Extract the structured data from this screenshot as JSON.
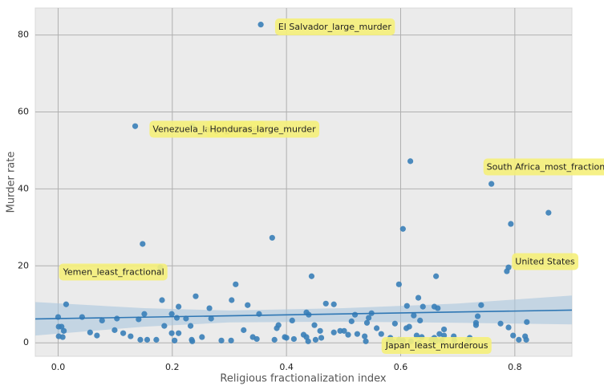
{
  "chart_data": {
    "type": "scatter",
    "xlabel": "Religious fractionalization index",
    "ylabel": "Murder rate",
    "xlim": [
      -0.04,
      0.9
    ],
    "ylim": [
      -3.5,
      87
    ],
    "xticks": [
      {
        "value": 0,
        "label": "0.0"
      },
      0.2,
      0.4,
      0.6,
      0.8
    ],
    "yticks": [
      0,
      20,
      40,
      60,
      80
    ],
    "grid": true,
    "color": "#3a7fb8",
    "x": [
      0.355,
      0.135,
      0.235,
      0.617,
      0.759,
      0.793,
      0.859,
      0.604,
      0.375,
      0.148,
      0.179,
      0.786,
      0.789,
      0.444,
      0.662,
      0.311,
      0.597,
      0.241,
      0.631,
      0.014,
      0.182,
      0.304,
      0.469,
      0.483,
      0.332,
      0.211,
      0.611,
      0.639,
      0.659,
      0.665,
      0.741,
      0.265,
      0.435,
      0.439,
      0.151,
      0.199,
      0.352,
      0.549,
      0.52,
      0.224,
      0.103,
      0.268,
      0.623,
      0.735,
      0.042,
      0.0,
      0.544,
      0.208,
      0.141,
      0.077,
      0.41,
      0.775,
      0.821,
      0.514,
      0.541,
      0.634,
      0.732,
      0.59,
      0.386,
      0.449,
      0.232,
      0.615,
      0.186,
      0.001,
      0.006,
      0.732,
      0.789,
      0.01,
      0.099,
      0.325,
      0.383,
      0.558,
      0.459,
      0.494,
      0.501,
      0.61,
      0.676,
      0.056,
      0.114,
      0.199,
      0.211,
      0.43,
      0.483,
      0.508,
      0.524,
      0.566,
      0.628,
      0.668,
      0.676,
      0.693,
      0.797,
      0.818,
      0.068,
      0.127,
      0.001,
      0.008,
      0.252,
      0.341,
      0.348,
      0.397,
      0.4,
      0.435,
      0.461,
      0.537,
      0.582,
      0.637,
      0.659,
      0.721,
      0.144,
      0.156,
      0.172,
      0.234,
      0.286,
      0.379,
      0.413,
      0.451,
      0.204,
      0.539,
      0.597,
      0.604,
      0.654,
      0.672,
      0.694,
      0.807,
      0.82,
      0.235,
      0.303,
      0.438,
      0.579,
      0.618,
      0.718,
      0.632,
      0.662,
      0.587
    ],
    "y": [
      82.7,
      56.3,
      56.3,
      47.2,
      41.3,
      30.9,
      33.8,
      29.6,
      27.3,
      25.7,
      19.6,
      18.6,
      19.6,
      17.3,
      17.3,
      15.2,
      15.2,
      12.1,
      11.7,
      10.0,
      11.1,
      11.1,
      10.2,
      10.0,
      9.8,
      9.4,
      9.6,
      9.4,
      9.4,
      9.0,
      9.8,
      9.0,
      7.9,
      7.3,
      7.5,
      7.5,
      7.5,
      7.7,
      7.3,
      6.3,
      6.3,
      6.3,
      7.1,
      6.9,
      6.7,
      6.7,
      6.5,
      6.5,
      6.1,
      5.8,
      5.8,
      5.0,
      5.4,
      5.6,
      5.2,
      5.8,
      5.2,
      5.0,
      4.6,
      4.6,
      4.4,
      4.2,
      4.4,
      4.2,
      4.2,
      4.6,
      4.0,
      3.1,
      3.3,
      3.3,
      3.8,
      3.8,
      3.1,
      3.1,
      3.1,
      3.8,
      3.5,
      2.7,
      2.5,
      2.5,
      2.5,
      2.1,
      2.7,
      2.1,
      2.3,
      2.3,
      1.9,
      2.3,
      1.9,
      1.7,
      1.9,
      1.7,
      1.9,
      1.7,
      1.7,
      1.5,
      1.5,
      1.5,
      1.0,
      1.5,
      1.3,
      1.5,
      1.3,
      1.7,
      1.3,
      1.5,
      1.3,
      1.3,
      0.8,
      0.8,
      0.8,
      0.8,
      0.6,
      0.8,
      1.0,
      0.8,
      0.6,
      0.4,
      0.8,
      0.6,
      0.8,
      0.6,
      0.6,
      0.8,
      0.8,
      0.4,
      0.6,
      0.4,
      0.4,
      0.4,
      0.6,
      0.0,
      0.6,
      0.2
    ],
    "regression": {
      "color": "#2f77b4",
      "x": [
        -0.04,
        0.9
      ],
      "y": [
        6.2,
        8.5
      ]
    },
    "band": {
      "color": "#aac6de",
      "x": [
        -0.04,
        0.15,
        0.3,
        0.5,
        0.7,
        0.9
      ],
      "lower": [
        1.9,
        4.2,
        5.3,
        5.5,
        5.2,
        4.8
      ],
      "upper": [
        10.6,
        9.0,
        8.4,
        9.0,
        10.2,
        12.3
      ]
    },
    "annotations": [
      {
        "text": "El Salvador_large_murder",
        "x": 0.38,
        "y": 82.0
      },
      {
        "text": "Venezuela_large_murder",
        "x": 0.16,
        "y": 55.4
      },
      {
        "text": "Honduras_large_murder",
        "x": 0.26,
        "y": 55.4
      },
      {
        "text": "South Africa_most_fractional",
        "x": 0.745,
        "y": 45.6
      },
      {
        "text": "United States",
        "x": 0.795,
        "y": 21.0
      },
      {
        "text": "Yemen_least_fractional",
        "x": 0.003,
        "y": 18.3
      },
      {
        "text": "Japan_least_murderous",
        "x": 0.568,
        "y": -0.8
      }
    ]
  }
}
